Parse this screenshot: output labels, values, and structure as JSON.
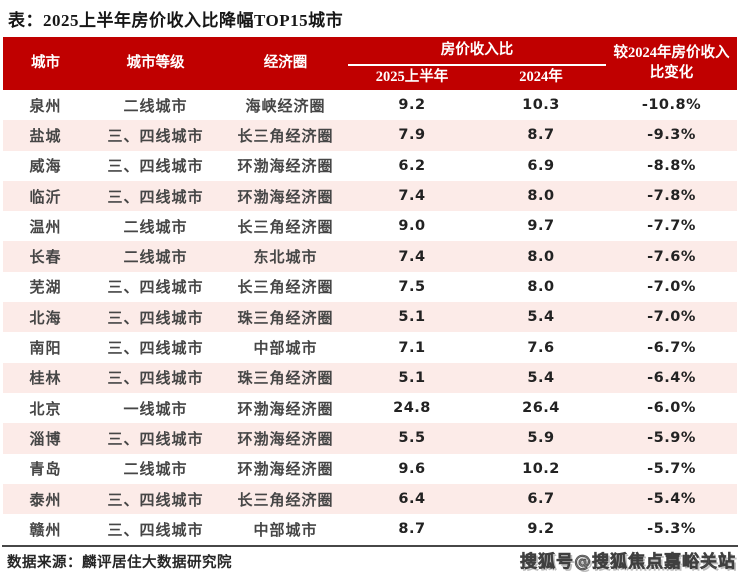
{
  "title": "表：2025上半年房价收入比降幅TOP15城市",
  "table": {
    "header": {
      "city": "城市",
      "tier": "城市等级",
      "circle": "经济圈",
      "ratio_group": "房价收入比",
      "h1_2025": "2025上半年",
      "y2024": "2024年",
      "change_line1": "较2024年房价收入",
      "change_line2": "比变化",
      "change_full": "较2024年房价收入比变化"
    }
  },
  "chart_data": {
    "type": "table",
    "title": "表：2025上半年房价收入比降幅TOP15城市",
    "columns": [
      "城市",
      "城市等级",
      "经济圈",
      "房价收入比 2025上半年",
      "房价收入比 2024年",
      "较2024年房价收入比变化"
    ],
    "rows": [
      [
        "泉州",
        "二线城市",
        "海峡经济圈",
        "9.2",
        "10.3",
        "-10.8%"
      ],
      [
        "盐城",
        "三、四线城市",
        "长三角经济圈",
        "7.9",
        "8.7",
        "-9.3%"
      ],
      [
        "威海",
        "三、四线城市",
        "环渤海经济圈",
        "6.2",
        "6.9",
        "-8.8%"
      ],
      [
        "临沂",
        "三、四线城市",
        "环渤海经济圈",
        "7.4",
        "8.0",
        "-7.8%"
      ],
      [
        "温州",
        "二线城市",
        "长三角经济圈",
        "9.0",
        "9.7",
        "-7.7%"
      ],
      [
        "长春",
        "二线城市",
        "东北城市",
        "7.4",
        "8.0",
        "-7.6%"
      ],
      [
        "芜湖",
        "三、四线城市",
        "长三角经济圈",
        "7.5",
        "8.0",
        "-7.0%"
      ],
      [
        "北海",
        "三、四线城市",
        "珠三角经济圈",
        "5.1",
        "5.4",
        "-7.0%"
      ],
      [
        "南阳",
        "三、四线城市",
        "中部城市",
        "7.1",
        "7.6",
        "-6.7%"
      ],
      [
        "桂林",
        "三、四线城市",
        "珠三角经济圈",
        "5.1",
        "5.4",
        "-6.4%"
      ],
      [
        "北京",
        "一线城市",
        "环渤海经济圈",
        "24.8",
        "26.4",
        "-6.0%"
      ],
      [
        "淄博",
        "三、四线城市",
        "环渤海经济圈",
        "5.5",
        "5.9",
        "-5.9%"
      ],
      [
        "青岛",
        "二线城市",
        "环渤海经济圈",
        "9.6",
        "10.2",
        "-5.7%"
      ],
      [
        "泰州",
        "三、四线城市",
        "长三角经济圈",
        "6.4",
        "6.7",
        "-5.4%"
      ],
      [
        "赣州",
        "三、四线城市",
        "中部城市",
        "8.7",
        "9.2",
        "-5.3%"
      ]
    ]
  },
  "footer": {
    "source": "数据来源：麟评居住大数据研究院"
  },
  "watermark": "搜狐号@搜狐焦点嘉峪关站",
  "colors": {
    "header_bg": "#c00000",
    "row_alt_bg": "#fcebe8",
    "header_text": "#ffffff",
    "body_text": "#3d3d3d",
    "rule": "#474747"
  }
}
